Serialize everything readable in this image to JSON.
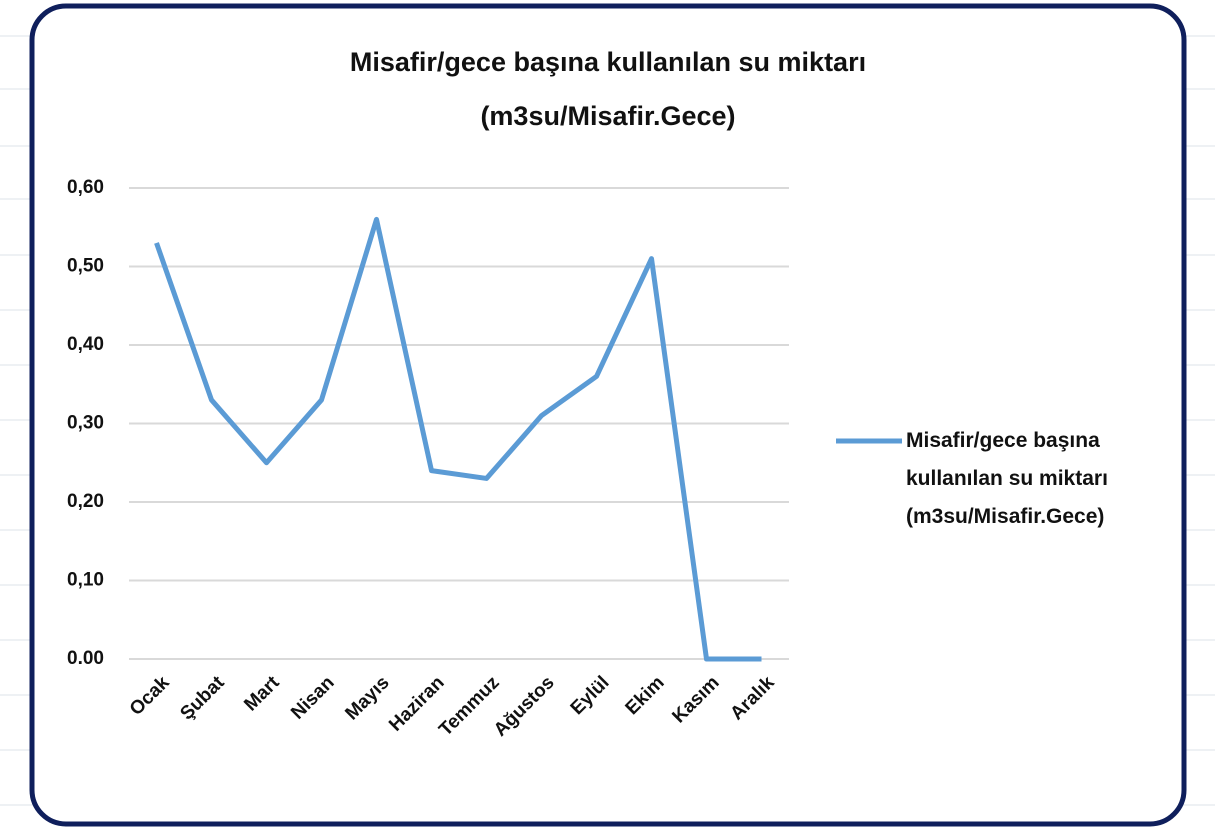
{
  "chart_data": {
    "type": "line",
    "title": [
      "Misafir/gece başına kullanılan su miktarı",
      "(m3su/Misafir.Gece)"
    ],
    "categories": [
      "Ocak",
      "Şubat",
      "Mart",
      "Nisan",
      "Mayıs",
      "Haziran",
      "Temmuz",
      "Ağustos",
      "Eylül",
      "Ekim",
      "Kasım",
      "Aralık"
    ],
    "series": [
      {
        "name": "Misafir/gece başına kullanılan su miktarı (m3su/Misafir.Gece)",
        "color": "#5b9bd5",
        "values": [
          0.53,
          0.33,
          0.25,
          0.33,
          0.56,
          0.24,
          0.23,
          0.31,
          0.36,
          0.51,
          0,
          0
        ]
      }
    ],
    "ylim": [
      0,
      0.6
    ],
    "yticks": [
      {
        "value": 0,
        "label": "0.00"
      },
      {
        "value": 0.1,
        "label": "0,10"
      },
      {
        "value": 0.2,
        "label": "0,20"
      },
      {
        "value": 0.3,
        "label": "0,30"
      },
      {
        "value": 0.4,
        "label": "0,40"
      },
      {
        "value": 0.5,
        "label": "0,50"
      },
      {
        "value": 0.6,
        "label": "0,60"
      }
    ],
    "grid": true,
    "legend": "right"
  }
}
